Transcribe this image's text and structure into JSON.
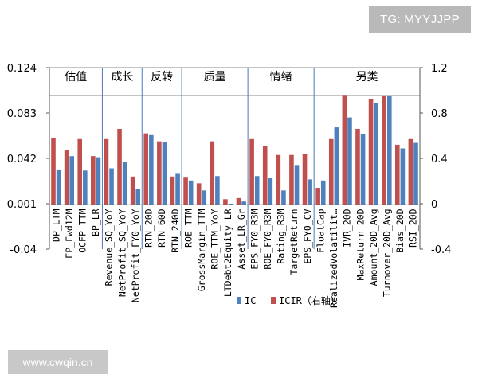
{
  "watermarks": {
    "top": "TG: MYYJJPP",
    "bottom": "www.cwqin.cn"
  },
  "colors": {
    "ic": "#4f81bd",
    "icir": "#c0504d",
    "axis": "#555555",
    "divider": "#4a7ab5"
  },
  "chart_data": {
    "type": "bar",
    "title": "",
    "xlabel": "",
    "ylabel": "",
    "ylim": [
      -0.04,
      0.124
    ],
    "y2lim": [
      -0.4,
      1.2
    ],
    "yticks": [
      "0.124",
      "0.083",
      "0.042",
      "0.001",
      "-0.04"
    ],
    "y2ticks": [
      "1.2",
      "0.8",
      "0.4",
      "0",
      "-0.4"
    ],
    "categories": [
      "DP_LTM",
      "EP_Fwd12M",
      "OCFP_TTM",
      "BP_LR",
      "Revenue_SQ_YoY",
      "NetProfit_SQ_YoY",
      "NetProfit_FY0_YoY",
      "RTN_20D",
      "RTN_60D",
      "RTN_240D",
      "ROE_TTM",
      "GrossMargin_TTM",
      "ROE_TTM_YoY",
      "LTDebt2Equity_LR",
      "Asset_LR_Gr",
      "EPS_FY0_R3M",
      "ROE_FY0_R3M",
      "Rating_R3M",
      "TargetReturn",
      "EPS_FY0_CV",
      "FloatCap",
      "RealizedVolatilit…",
      "IVR_20D",
      "MaxReturn_20D",
      "Amount_20D_Avg",
      "Turnover_20D_Avg",
      "Bias_20D",
      "RSI_20D"
    ],
    "series": [
      {
        "name": "IC",
        "axis": "left",
        "values": [
          0.032,
          0.044,
          0.031,
          0.043,
          0.033,
          0.039,
          0.014,
          0.063,
          0.057,
          0.028,
          0.022,
          0.013,
          0.026,
          0.001,
          0.003,
          0.026,
          0.024,
          0.013,
          0.036,
          0.023,
          0.022,
          0.07,
          0.079,
          0.064,
          0.092,
          0.099,
          0.051,
          0.056
        ]
      },
      {
        "name": "ICIR（右轴）",
        "axis": "right",
        "values": [
          0.58,
          0.47,
          0.57,
          0.42,
          0.57,
          0.66,
          0.24,
          0.62,
          0.55,
          0.24,
          0.23,
          0.18,
          0.55,
          0.04,
          0.05,
          0.57,
          0.51,
          0.43,
          0.43,
          0.44,
          0.14,
          0.57,
          0.96,
          0.66,
          0.92,
          0.95,
          0.52,
          0.57
        ]
      }
    ],
    "groups": [
      {
        "label": "估值",
        "start": 0,
        "end": 3
      },
      {
        "label": "成长",
        "start": 4,
        "end": 6
      },
      {
        "label": "反转",
        "start": 7,
        "end": 9
      },
      {
        "label": "质量",
        "start": 10,
        "end": 14
      },
      {
        "label": "情绪",
        "start": 15,
        "end": 19
      },
      {
        "label": "另类",
        "start": 20,
        "end": 27
      }
    ],
    "legend": {
      "position": "bottom",
      "items": [
        "IC",
        "ICIR（右轴）"
      ]
    },
    "grid": false
  }
}
